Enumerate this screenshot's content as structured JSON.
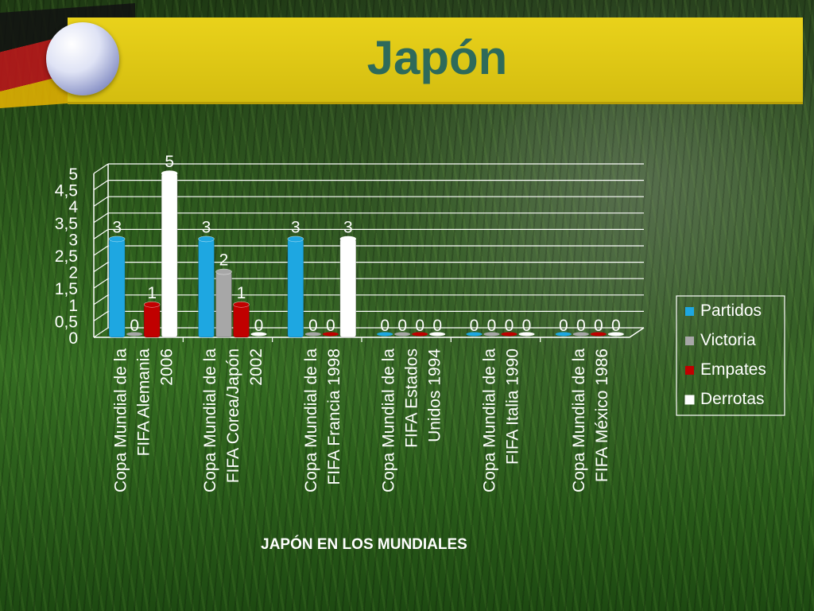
{
  "slide": {
    "title": "Japón"
  },
  "chart_data": {
    "type": "bar",
    "title": "",
    "xlabel": "JAPÓN EN LOS MUNDIALES",
    "ylabel": "",
    "ylim": [
      0,
      5
    ],
    "yticks": [
      "0",
      "0,5",
      "1",
      "1,5",
      "2",
      "2,5",
      "3",
      "3,5",
      "4",
      "4,5",
      "5"
    ],
    "grid": true,
    "legend_position": "right",
    "categories": [
      [
        "Copa Mundial de la",
        "FIFA Alemania",
        "2006"
      ],
      [
        "Copa Mundial de la",
        "FIFA Corea/Japón",
        "2002"
      ],
      [
        "Copa Mundial de la",
        "FIFA Francia 1998"
      ],
      [
        "Copa Mundial de la",
        "FIFA Estados",
        "Unidos 1994"
      ],
      [
        "Copa Mundial de la",
        "FIFA Italia 1990"
      ],
      [
        "Copa Mundial de la",
        "FIFA México 1986"
      ]
    ],
    "series": [
      {
        "name": "Partidos",
        "color": "#1ea7e1",
        "values": [
          3,
          3,
          3,
          0,
          0,
          0
        ]
      },
      {
        "name": "Victoria",
        "color": "#a7a7a7",
        "values": [
          0,
          2,
          0,
          0,
          0,
          0
        ]
      },
      {
        "name": "Empates",
        "color": "#c00000",
        "values": [
          1,
          1,
          0,
          0,
          0,
          0
        ]
      },
      {
        "name": "Derrotas",
        "color": "#ffffff",
        "values": [
          5,
          0,
          3,
          0,
          0,
          0
        ]
      }
    ]
  }
}
